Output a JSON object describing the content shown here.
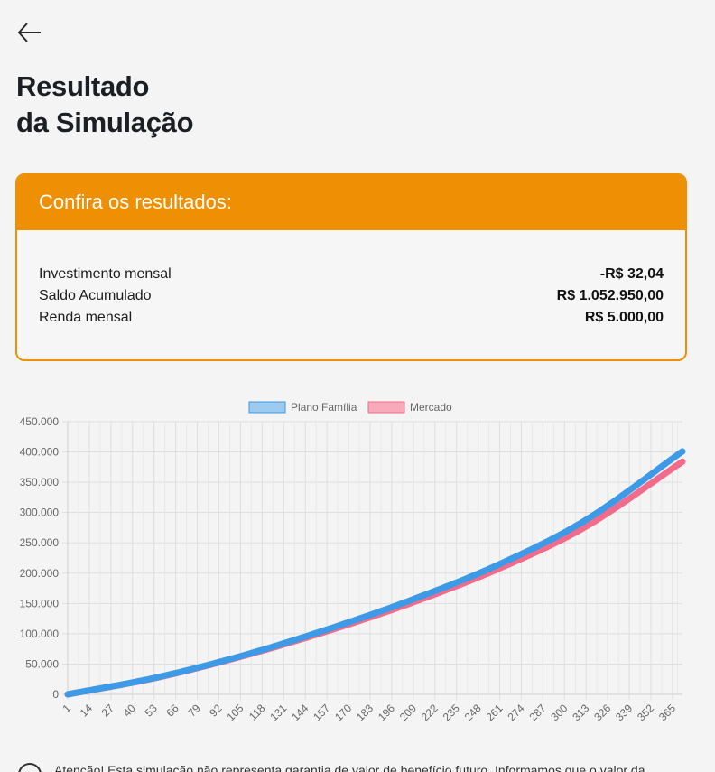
{
  "page": {
    "title_line1": "Resultado",
    "title_line2": "da Simulação"
  },
  "results_card": {
    "heading": "Confira os resultados:",
    "rows": [
      {
        "label": "Investimento mensal",
        "value": "-R$ 32,04"
      },
      {
        "label": "Saldo Acumulado",
        "value": "R$ 1.052.950,00"
      },
      {
        "label": "Renda mensal",
        "value": "R$ 5.000,00"
      }
    ]
  },
  "notice": {
    "text": "Atenção! Esta simulação não representa garantia de valor de benefício futuro. Informamos que o valor da"
  },
  "chart_data": {
    "type": "line",
    "x_ticks": [
      1,
      14,
      27,
      40,
      53,
      66,
      79,
      92,
      105,
      118,
      131,
      144,
      157,
      170,
      183,
      196,
      209,
      222,
      235,
      248,
      261,
      274,
      287,
      300,
      313,
      326,
      339,
      352,
      365
    ],
    "x_range": [
      1,
      371
    ],
    "ylim": [
      0,
      450000
    ],
    "y_ticks": [
      0,
      50000,
      100000,
      150000,
      200000,
      250000,
      300000,
      350000,
      400000,
      450000
    ],
    "y_tick_labels": [
      "0",
      "50.000",
      "100.000",
      "150.000",
      "200.000",
      "250.000",
      "300.000",
      "350.000",
      "400.000",
      "450.000"
    ],
    "grid": true,
    "legend_position": "top-center",
    "series": [
      {
        "name": "Plano Família",
        "color": "#3c9ae6",
        "fill": "#9ccbf2",
        "points": [
          [
            1,
            0
          ],
          [
            53,
            27000
          ],
          [
            105,
            63000
          ],
          [
            157,
            107000
          ],
          [
            209,
            157000
          ],
          [
            261,
            215000
          ],
          [
            313,
            288000
          ],
          [
            371,
            401000
          ]
        ]
      },
      {
        "name": "Mercado",
        "color": "#f36b8b",
        "fill": "#f8aabb",
        "points": [
          [
            1,
            0
          ],
          [
            53,
            26500
          ],
          [
            105,
            62000
          ],
          [
            157,
            104000
          ],
          [
            209,
            152000
          ],
          [
            261,
            208000
          ],
          [
            313,
            277000
          ],
          [
            371,
            384000
          ]
        ]
      }
    ]
  }
}
